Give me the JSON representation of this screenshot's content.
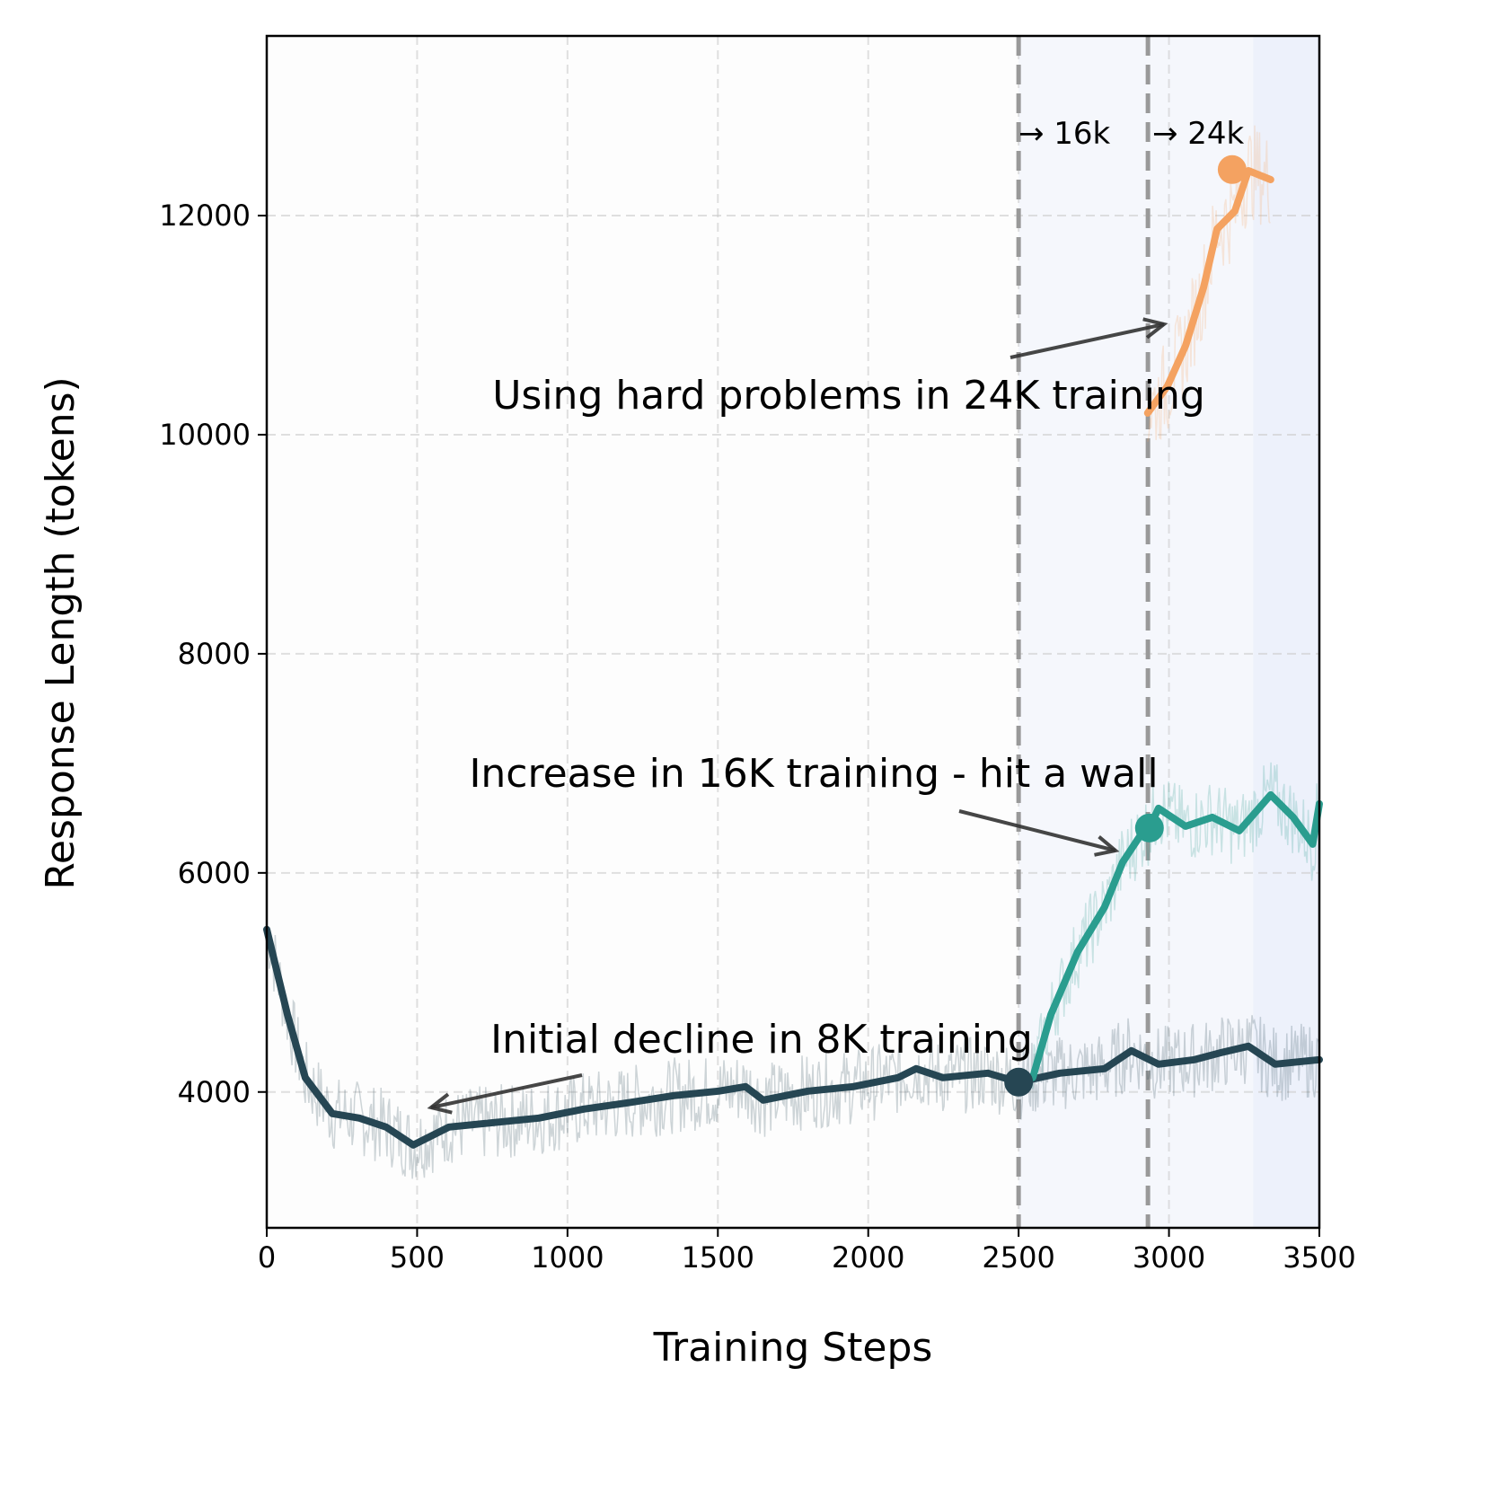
{
  "chart_data": {
    "type": "line",
    "title": "",
    "xlabel": "Training Steps",
    "ylabel": "Response Length (tokens)",
    "xlim": [
      0,
      3500
    ],
    "ylim": [
      2760,
      13640
    ],
    "xticks": [
      0,
      500,
      1000,
      1500,
      2000,
      2500,
      3000,
      3500
    ],
    "yticks": [
      4000,
      6000,
      8000,
      10000,
      12000
    ],
    "grid": true,
    "vlines": [
      2500,
      2930
    ],
    "shaded_region": [
      2500,
      3500
    ],
    "series": [
      {
        "color": "#264653",
        "x": [
          0,
          69,
          128,
          218,
          308,
          397,
          487,
          606,
          755,
          905,
          1054,
          1203,
          1353,
          1502,
          1592,
          1651,
          1800,
          1950,
          2099,
          2159,
          2248,
          2398,
          2500,
          2637,
          2786,
          2875,
          2965,
          3085,
          3174,
          3264,
          3353,
          3500
        ],
        "y": [
          5484,
          4705,
          4131,
          3803,
          3762,
          3680,
          3516,
          3680,
          3721,
          3762,
          3844,
          3902,
          3967,
          4008,
          4049,
          3926,
          4008,
          4049,
          4131,
          4213,
          4131,
          4172,
          4090,
          4172,
          4213,
          4377,
          4254,
          4295,
          4360,
          4418,
          4254,
          4295
        ],
        "marker": [
          2500,
          4090
        ]
      },
      {
        "color": "#2a9d8f",
        "x": [
          2547,
          2607,
          2696,
          2786,
          2846,
          2905,
          2935,
          2965,
          3055,
          3144,
          3234,
          3338,
          3413,
          3478,
          3500
        ],
        "y": [
          4131,
          4705,
          5279,
          5689,
          6098,
          6344,
          6410,
          6590,
          6426,
          6508,
          6385,
          6713,
          6508,
          6262,
          6631
        ],
        "marker": [
          2935,
          6410
        ]
      },
      {
        "color": "#f4a261",
        "x": [
          2929,
          2995,
          3055,
          3115,
          3160,
          3219,
          3264,
          3338
        ],
        "y": [
          10197,
          10443,
          10811,
          11344,
          11877,
          12041,
          12410,
          12328
        ],
        "marker": [
          3210,
          12420
        ]
      }
    ],
    "annotations": [
      {
        "text": "Initial decline in 8K training"
      },
      {
        "text": "Increase in 16K training - hit a wall"
      },
      {
        "text": "Using hard problems in 24K training"
      },
      {
        "text": "→ 16k"
      },
      {
        "text": "→ 24k"
      }
    ]
  }
}
